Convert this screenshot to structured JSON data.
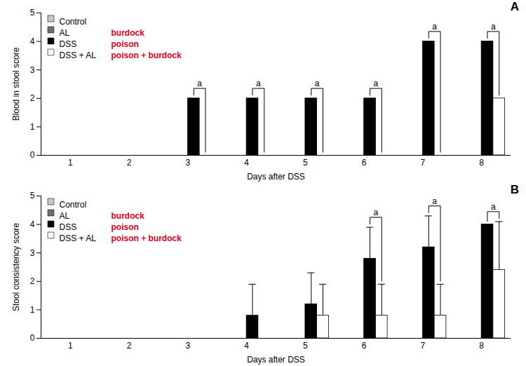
{
  "chart_data": [
    {
      "type": "bar",
      "title": "A",
      "x_label": "Days after DSS",
      "y_label": "Blood in stool score",
      "categories": [
        "1",
        "2",
        "3",
        "4",
        "5",
        "6",
        "7",
        "8"
      ],
      "series": [
        {
          "name": "Control",
          "color": "#c8c8c8",
          "values": [
            0,
            0,
            0,
            0,
            0,
            0,
            0,
            0
          ]
        },
        {
          "name": "AL",
          "color": "#6e6e6e",
          "values": [
            0,
            0,
            0,
            0,
            0,
            0,
            0,
            0
          ]
        },
        {
          "name": "DSS",
          "color": "#000000",
          "values": [
            0,
            0,
            2,
            2,
            2,
            2,
            4,
            4
          ]
        },
        {
          "name": "DSS + AL",
          "color": "#ffffff",
          "values": [
            0,
            0,
            0,
            0,
            0,
            0,
            0,
            2
          ]
        }
      ],
      "ylim": [
        0,
        5
      ],
      "yticks": [
        0,
        1,
        2,
        3,
        4,
        5
      ],
      "legend": "top-left",
      "annotations": [
        {
          "text": "burdock",
          "series": "AL",
          "color": "#e8001c"
        },
        {
          "text": "poison",
          "series": "DSS",
          "color": "#e8001c"
        },
        {
          "text": "poison + burdock",
          "series": "DSS + AL",
          "color": "#e8001c"
        }
      ],
      "significance": [
        {
          "category": "3",
          "label": "a",
          "between": [
            "DSS",
            "DSS + AL"
          ]
        },
        {
          "category": "4",
          "label": "a",
          "between": [
            "DSS",
            "DSS + AL"
          ]
        },
        {
          "category": "5",
          "label": "a",
          "between": [
            "DSS",
            "DSS + AL"
          ]
        },
        {
          "category": "6",
          "label": "a",
          "between": [
            "DSS",
            "DSS + AL"
          ]
        },
        {
          "category": "7",
          "label": "a",
          "between": [
            "DSS",
            "DSS + AL"
          ]
        },
        {
          "category": "8",
          "label": "a",
          "between": [
            "DSS",
            "DSS + AL"
          ]
        }
      ]
    },
    {
      "type": "bar",
      "title": "B",
      "x_label": "Days after DSS",
      "y_label": "Stool consistency score",
      "categories": [
        "1",
        "2",
        "3",
        "4",
        "5",
        "6",
        "7",
        "8"
      ],
      "series": [
        {
          "name": "Control",
          "color": "#c8c8c8",
          "values": [
            0,
            0,
            0,
            0,
            0,
            0,
            0,
            0
          ],
          "errors": [
            0,
            0,
            0,
            0,
            0,
            0,
            0,
            0
          ]
        },
        {
          "name": "AL",
          "color": "#6e6e6e",
          "values": [
            0,
            0,
            0,
            0,
            0,
            0,
            0,
            0
          ],
          "errors": [
            0,
            0,
            0,
            0,
            0,
            0,
            0,
            0
          ]
        },
        {
          "name": "DSS",
          "color": "#000000",
          "values": [
            0,
            0,
            0,
            0.8,
            1.2,
            2.8,
            3.2,
            4
          ],
          "errors": [
            0,
            0,
            0,
            1.1,
            1.1,
            1.1,
            1.1,
            0
          ]
        },
        {
          "name": "DSS + AL",
          "color": "#ffffff",
          "values": [
            0,
            0,
            0,
            0,
            0.8,
            0.8,
            0.8,
            2.4
          ],
          "errors": [
            0,
            0,
            0,
            0,
            1.1,
            1.1,
            1.1,
            1.7
          ]
        }
      ],
      "ylim": [
        0,
        5
      ],
      "yticks": [
        0,
        1,
        2,
        3,
        4,
        5
      ],
      "legend": "top-left",
      "annotations": [
        {
          "text": "burdock",
          "series": "AL",
          "color": "#e8001c"
        },
        {
          "text": "poison",
          "series": "DSS",
          "color": "#e8001c"
        },
        {
          "text": "poison + burdock",
          "series": "DSS + AL",
          "color": "#e8001c"
        }
      ],
      "significance": [
        {
          "category": "6",
          "label": "a",
          "between": [
            "DSS",
            "DSS + AL"
          ]
        },
        {
          "category": "7",
          "label": "a",
          "between": [
            "DSS",
            "DSS + AL"
          ]
        },
        {
          "category": "8",
          "label": "a",
          "between": [
            "DSS",
            "DSS + AL"
          ]
        }
      ]
    }
  ]
}
